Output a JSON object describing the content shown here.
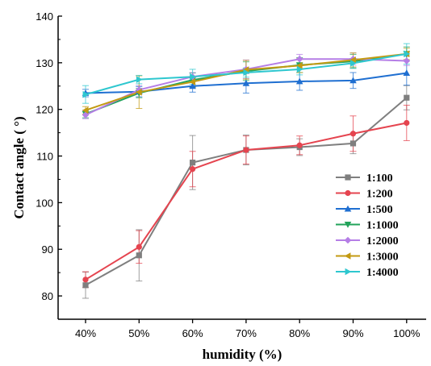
{
  "chart_data": {
    "type": "line",
    "xlabel": "humidity (%)",
    "ylabel": "Contact angle ( °)",
    "categories": [
      "40%",
      "50%",
      "60%",
      "70%",
      "80%",
      "90%",
      "100%"
    ],
    "ylim": [
      75,
      140
    ],
    "yticks": [
      80,
      90,
      100,
      110,
      120,
      130,
      140
    ],
    "grid": false,
    "legend_position": "bottom-right",
    "series": [
      {
        "name": "1:100",
        "color": "#7f7f7f",
        "marker": "square",
        "values": [
          82.3,
          88.7,
          108.6,
          111.3,
          111.9,
          112.7,
          122.5
        ],
        "errors": [
          2.8,
          5.5,
          5.8,
          3.2,
          1.8,
          2.2,
          2.6
        ]
      },
      {
        "name": "1:200",
        "color": "#e5444f",
        "marker": "circle",
        "values": [
          83.5,
          90.5,
          107.2,
          111.3,
          112.3,
          114.8,
          117.1
        ],
        "errors": [
          1.7,
          3.5,
          3.8,
          3.0,
          2.0,
          3.8,
          3.8
        ]
      },
      {
        "name": "1:500",
        "color": "#1f6fd1",
        "marker": "triangle-up",
        "values": [
          123.5,
          123.8,
          125.0,
          125.6,
          126.0,
          126.2,
          127.8
        ],
        "errors": [
          0.8,
          1.1,
          1.3,
          2.1,
          1.9,
          1.7,
          2.6
        ]
      },
      {
        "name": "1:1000",
        "color": "#22a35a",
        "marker": "triangle-down",
        "values": [
          119.0,
          123.5,
          126.3,
          128.2,
          129.5,
          130.3,
          131.9
        ],
        "errors": [
          0.8,
          1.0,
          1.5,
          2.0,
          1.6,
          1.5,
          1.5
        ]
      },
      {
        "name": "1:2000",
        "color": "#b57ee6",
        "marker": "diamond",
        "values": [
          118.8,
          124.2,
          127.0,
          128.6,
          130.8,
          130.8,
          130.4
        ],
        "errors": [
          0.8,
          0.9,
          0.9,
          2.0,
          1.0,
          1.3,
          1.0
        ]
      },
      {
        "name": "1:3000",
        "color": "#c39a12",
        "marker": "triangle-left",
        "values": [
          119.8,
          123.7,
          125.9,
          128.5,
          129.4,
          130.6,
          131.9
        ],
        "errors": [
          0.8,
          3.5,
          1.2,
          2.0,
          1.5,
          1.5,
          1.2
        ]
      },
      {
        "name": "1:4000",
        "color": "#2ec7cf",
        "marker": "triangle-right",
        "values": [
          123.2,
          126.4,
          127.0,
          127.9,
          128.6,
          129.9,
          131.9
        ],
        "errors": [
          1.9,
          0.9,
          1.6,
          1.0,
          1.2,
          1.0,
          2.2
        ]
      }
    ]
  }
}
